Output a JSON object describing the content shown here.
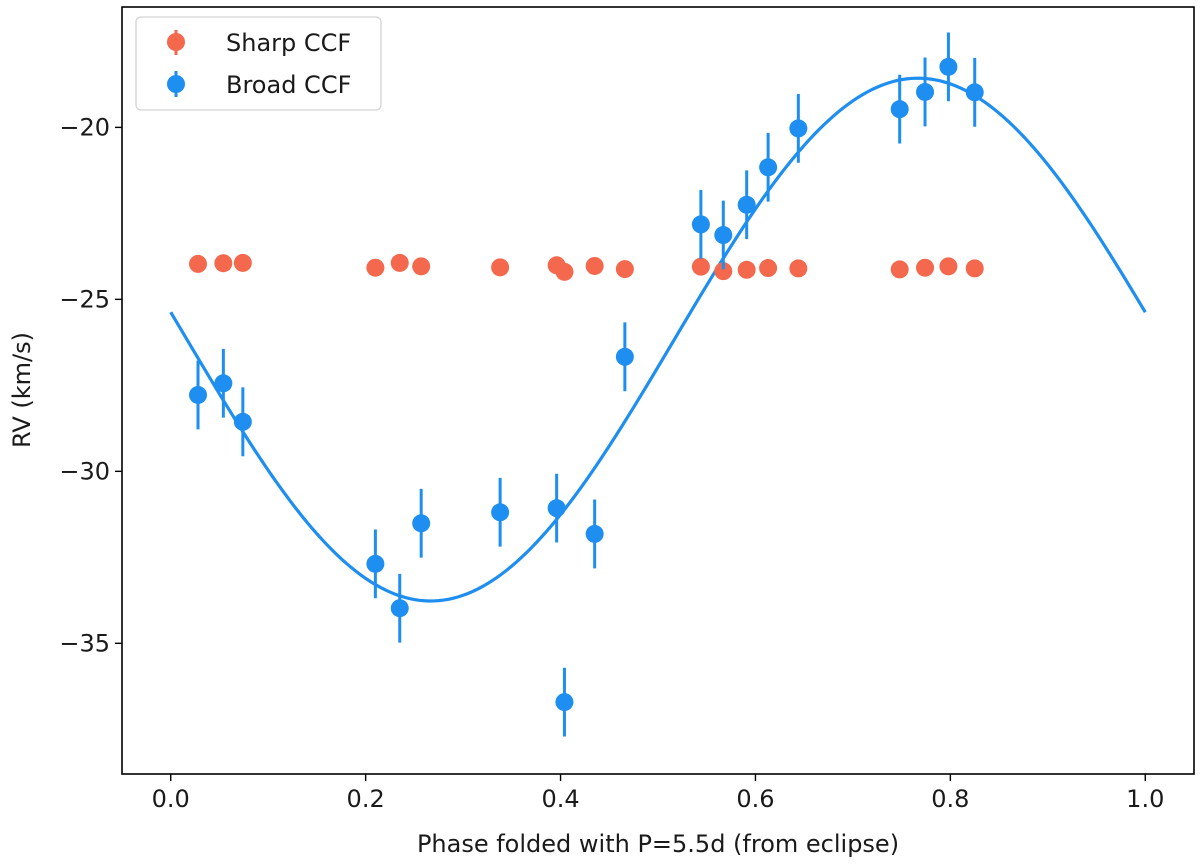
{
  "chart_data": {
    "type": "scatter",
    "title": "",
    "xlabel": "Phase folded with P=5.5d (from eclipse)",
    "ylabel": "RV (km/s)",
    "xlim": [
      -0.05,
      1.05
    ],
    "ylim": [
      -38.8,
      -16.5
    ],
    "grid": false,
    "legend_position": "upper-left",
    "x_ticks": [
      0.0,
      0.2,
      0.4,
      0.6,
      0.8,
      1.0
    ],
    "x_tick_labels": [
      "0.0",
      "0.2",
      "0.4",
      "0.6",
      "0.8",
      "1.0"
    ],
    "y_ticks": [
      -35,
      -30,
      -25,
      -20
    ],
    "y_tick_labels": [
      "−35",
      "−30",
      "−25",
      "−20"
    ],
    "series": [
      {
        "name": "Sharp CCF",
        "color": "#f4684d",
        "marker": "circle",
        "x": [
          0.028,
          0.054,
          0.074,
          0.21,
          0.235,
          0.257,
          0.338,
          0.396,
          0.404,
          0.435,
          0.466,
          0.544,
          0.567,
          0.591,
          0.613,
          0.644,
          0.748,
          0.774,
          0.798,
          0.825
        ],
        "y": [
          -23.97,
          -23.95,
          -23.94,
          -24.08,
          -23.94,
          -24.04,
          -24.07,
          -24.01,
          -24.2,
          -24.03,
          -24.12,
          -24.05,
          -24.18,
          -24.14,
          -24.09,
          -24.1,
          -24.13,
          -24.08,
          -24.04,
          -24.1
        ]
      },
      {
        "name": "Broad CCF",
        "color": "#1e8ef0",
        "marker": "circle",
        "errorbar": 1.0,
        "x": [
          0.028,
          0.054,
          0.074,
          0.21,
          0.235,
          0.257,
          0.338,
          0.396,
          0.404,
          0.435,
          0.466,
          0.544,
          0.567,
          0.591,
          0.613,
          0.644,
          0.748,
          0.774,
          0.798,
          0.825
        ],
        "y": [
          -27.78,
          -27.44,
          -28.56,
          -32.69,
          -33.98,
          -31.51,
          -31.19,
          -31.07,
          -36.71,
          -31.82,
          -26.67,
          -22.82,
          -23.13,
          -22.25,
          -21.16,
          -20.03,
          -19.47,
          -18.97,
          -18.24,
          -18.98
        ]
      }
    ],
    "fit": {
      "name": "sinusoidal fit",
      "color": "#1e8ef0",
      "model": "sine",
      "offset": -26.17,
      "amplitude": 7.6,
      "phase_shift": 0.0167,
      "x_range": [
        0.0,
        1.0
      ]
    }
  }
}
